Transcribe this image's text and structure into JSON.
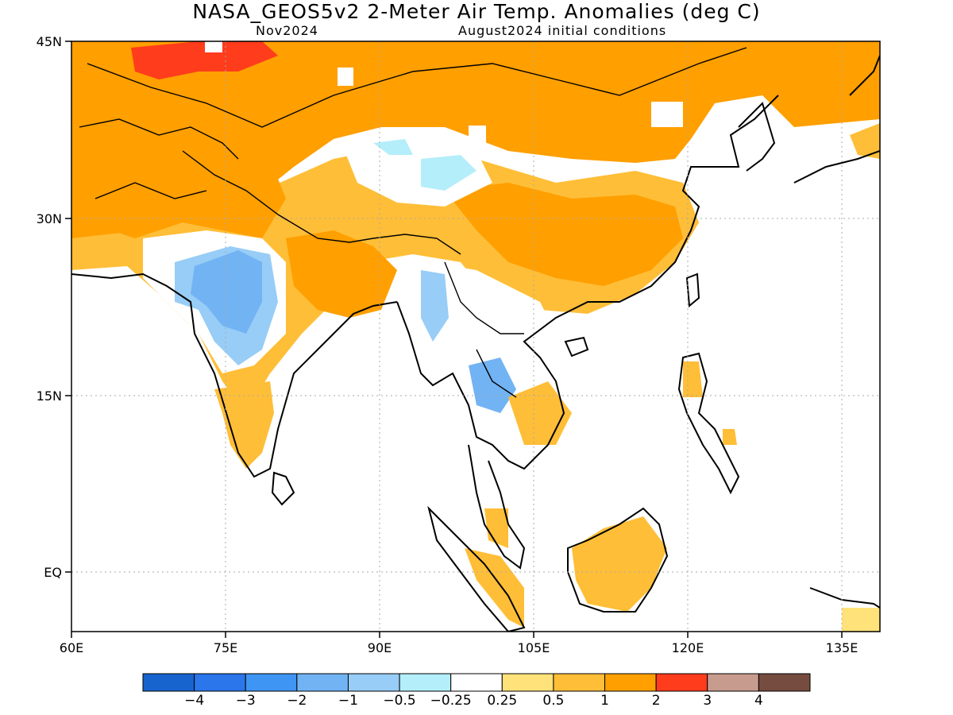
{
  "title": "NASA_GEOS5v2 2-Meter Air Temp. Anomalies (deg C)",
  "subtitle_left": "Nov2024",
  "subtitle_right": "August2024 initial conditions",
  "axes": {
    "lon_ticks": [
      "60E",
      "75E",
      "90E",
      "105E",
      "120E",
      "135E"
    ],
    "lat_ticks": [
      "45N",
      "30N",
      "15N",
      "EQ"
    ]
  },
  "colorbar": {
    "colors": [
      "#1764cf",
      "#2a76ea",
      "#3f95f3",
      "#72b3f4",
      "#97cdf6",
      "#b4eefa",
      "#ffffff",
      "#ffe27a",
      "#ffbe37",
      "#ff9f00",
      "#ff3c1c",
      "#c79b8e",
      "#754c3f"
    ],
    "labels": [
      "−4",
      "−3",
      "−2",
      "−1",
      "−0.5",
      "−0.25",
      "0.25",
      "0.5",
      "1",
      "2",
      "3",
      "4"
    ]
  },
  "map_colors": {
    "warm_orange": "#ff9f00",
    "light_orange": "#ffbe37",
    "yellow": "#ffe27a",
    "red": "#ff3c1c",
    "pale_blue": "#b4eefa",
    "light_blue": "#97cdf6",
    "mid_blue": "#72b3f4"
  }
}
